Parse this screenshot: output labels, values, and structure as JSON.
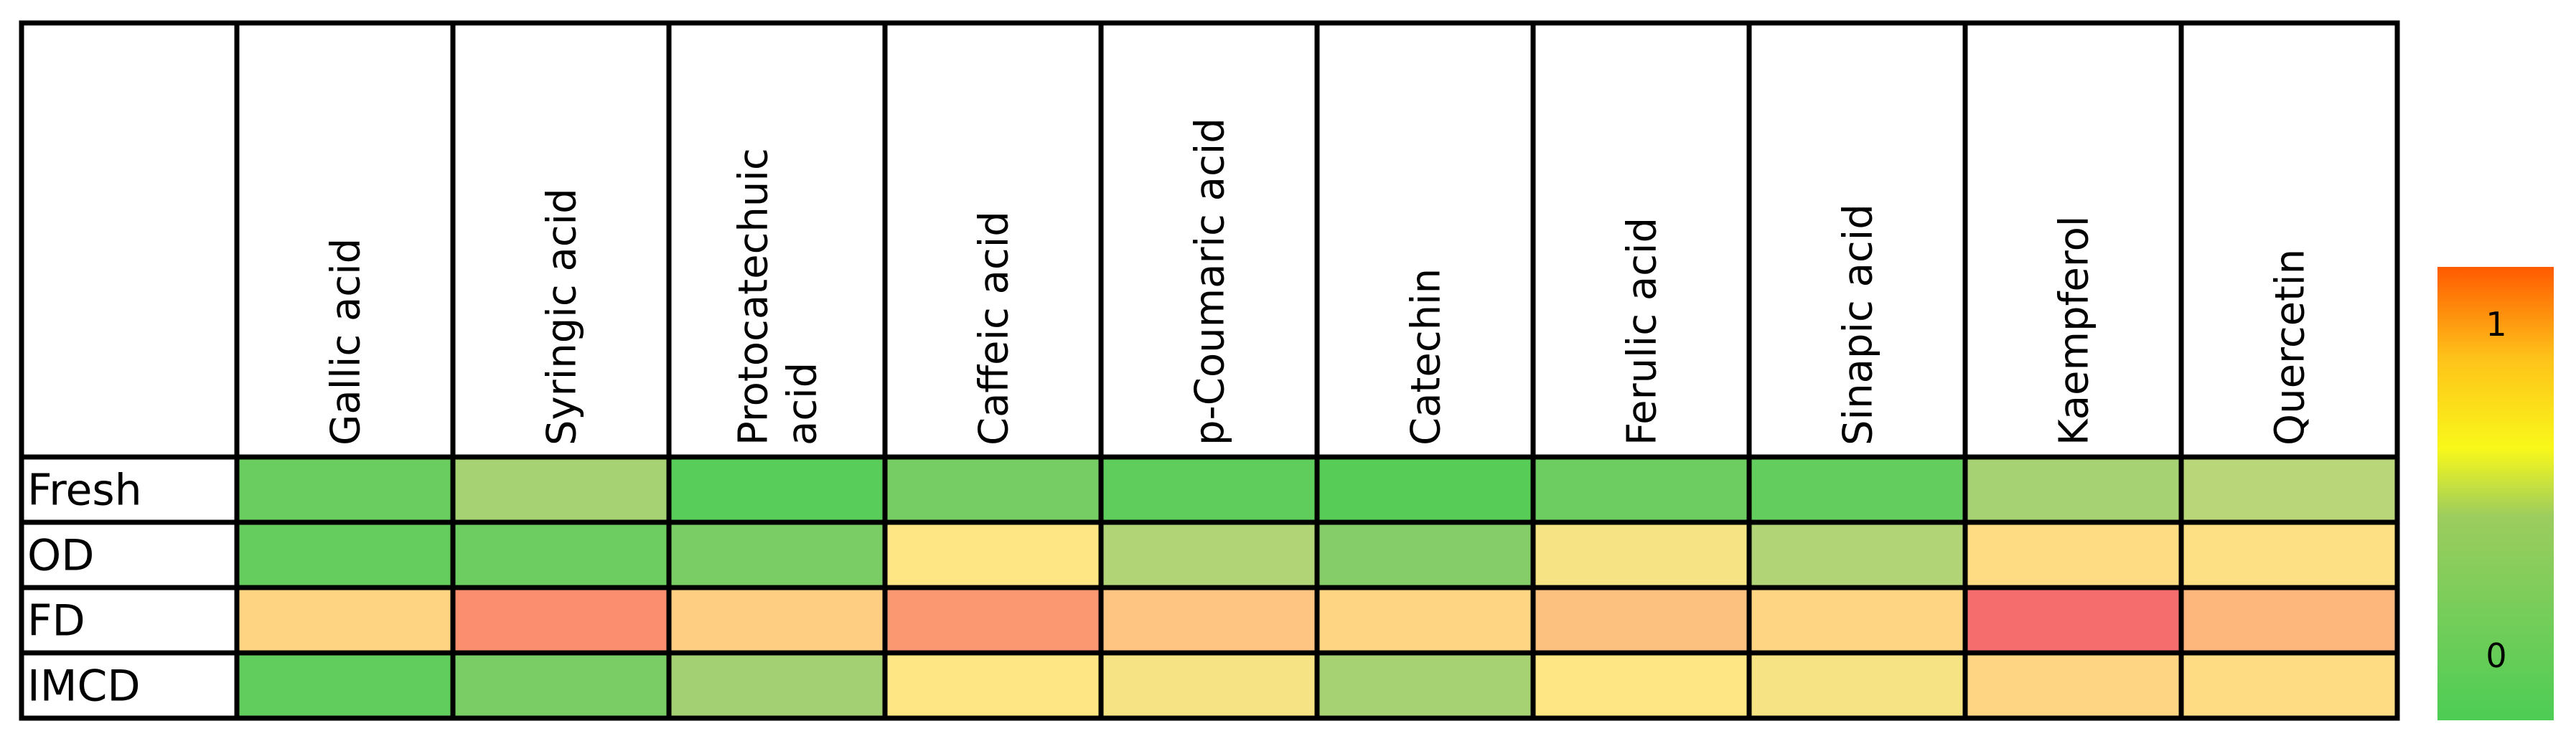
{
  "chart_data": {
    "type": "heatmap",
    "columns": [
      "Gallic acid",
      "Syringic acid",
      "Protocatechuic acid",
      "Caffeic acid",
      "p-Coumaric acid",
      "Catechin",
      "Ferulic acid",
      "Sinapic acid",
      "Kaempferol",
      "Quercetin"
    ],
    "column_lines": [
      [
        "Gallic acid"
      ],
      [
        "Syringic acid"
      ],
      [
        "Protocatechuic",
        "acid"
      ],
      [
        "Caffeic acid"
      ],
      [
        "p-Coumaric acid"
      ],
      [
        "Catechin"
      ],
      [
        "Ferulic acid"
      ],
      [
        "Sinapic acid"
      ],
      [
        "Kaempferol"
      ],
      [
        "Quercetin"
      ]
    ],
    "rows": [
      "Fresh",
      "OD",
      "FD",
      "IMCD"
    ],
    "values": [
      [
        0.12,
        0.34,
        0.05,
        0.17,
        0.07,
        0.04,
        0.13,
        0.09,
        0.34,
        0.38
      ],
      [
        0.1,
        0.13,
        0.18,
        0.55,
        0.36,
        0.23,
        0.53,
        0.36,
        0.6,
        0.58
      ],
      [
        0.64,
        0.86,
        0.67,
        0.83,
        0.71,
        0.63,
        0.72,
        0.63,
        0.97,
        0.75
      ],
      [
        0.08,
        0.18,
        0.33,
        0.55,
        0.53,
        0.34,
        0.55,
        0.53,
        0.63,
        0.6
      ]
    ],
    "colorbar": {
      "min": 0,
      "max": 1,
      "ticks": [
        "0",
        "1"
      ]
    },
    "colors": {
      "low": "#4dcd55",
      "mid_low": "#8ec874",
      "mid": "#f9f81a",
      "high_mid": "#fee584",
      "high": "#f4646c",
      "bar_top": "#ff5a00",
      "grid": "#000000"
    }
  }
}
